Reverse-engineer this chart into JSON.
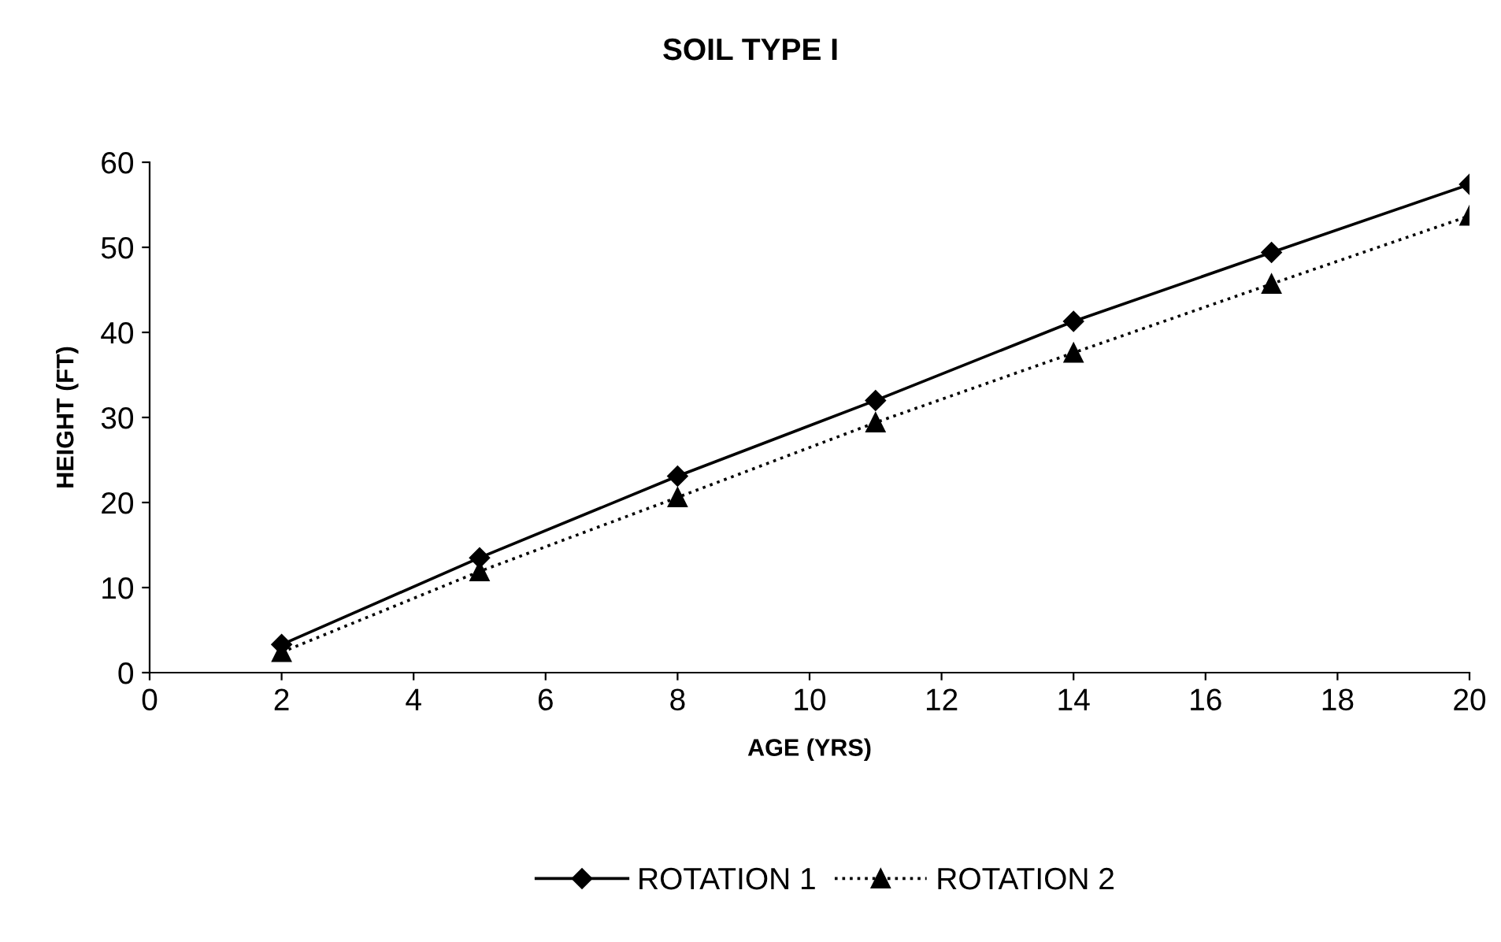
{
  "chart_data": {
    "type": "line",
    "title": "SOIL TYPE I",
    "xlabel": "AGE (YRS)",
    "ylabel": "HEIGHT (FT)",
    "xlim": [
      0,
      20
    ],
    "xticks": [
      0,
      2,
      4,
      6,
      8,
      10,
      12,
      14,
      16,
      18,
      20
    ],
    "ylim": [
      0,
      60
    ],
    "yticks": [
      0,
      10,
      20,
      30,
      40,
      50,
      60
    ],
    "grid": false,
    "legend": "bottom",
    "series": [
      {
        "name": "ROTATION 1",
        "color": "#000000",
        "marker": "diamond",
        "line_style": "solid",
        "x": [
          2,
          5,
          8,
          11,
          14,
          17,
          20
        ],
        "values": [
          3.3,
          13.5,
          23.1,
          32.0,
          41.3,
          49.4,
          57.4
        ]
      },
      {
        "name": "ROTATION 2",
        "color": "#000000",
        "marker": "triangle",
        "line_style": "dotted",
        "x": [
          2,
          5,
          8,
          11,
          14,
          17,
          20
        ],
        "values": [
          2.4,
          11.9,
          20.6,
          29.4,
          37.6,
          45.7,
          53.7
        ]
      }
    ]
  }
}
